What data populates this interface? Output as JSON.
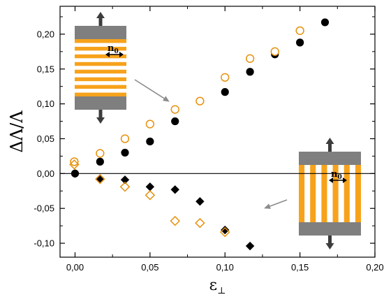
{
  "chart_data": {
    "type": "scatter",
    "title": "",
    "xlabel": "ε",
    "xlabel_subscript": "⊥",
    "ylabel": "ΔΛ/Λ",
    "xlim": [
      -0.01,
      0.2
    ],
    "ylim": [
      -0.12,
      0.24
    ],
    "x_ticks": [
      0.0,
      0.05,
      0.1,
      0.15,
      0.2
    ],
    "x_tick_labels": [
      "0,00",
      "0,05",
      "0,10",
      "0,15",
      "0,20"
    ],
    "y_ticks": [
      -0.1,
      -0.05,
      0.0,
      0.05,
      0.1,
      0.15,
      0.2
    ],
    "y_tick_labels": [
      "-0,10",
      "-0,05",
      "0,00",
      "0,05",
      "0,10",
      "0,15",
      "0,20"
    ],
    "grid": false,
    "zero_line": true,
    "series": [
      {
        "marker": "filled-circle",
        "color": "#000000",
        "points": [
          [
            0.0,
            0.0
          ],
          [
            0.0167,
            0.017
          ],
          [
            0.0333,
            0.03
          ],
          [
            0.05,
            0.046
          ],
          [
            0.0667,
            0.075
          ],
          [
            0.1,
            0.117
          ],
          [
            0.1167,
            0.146
          ],
          [
            0.1333,
            0.171
          ],
          [
            0.15,
            0.188
          ],
          [
            0.1667,
            0.217
          ]
        ]
      },
      {
        "marker": "open-circle",
        "color": "#e8900c",
        "points": [
          [
            -0.0005,
            0.017
          ],
          [
            0.0167,
            0.029
          ],
          [
            0.0333,
            0.05
          ],
          [
            0.05,
            0.071
          ],
          [
            0.0667,
            0.092
          ],
          [
            0.0833,
            0.104
          ],
          [
            0.1,
            0.138
          ],
          [
            0.1167,
            0.165
          ],
          [
            0.1333,
            0.175
          ],
          [
            0.15,
            0.205
          ]
        ]
      },
      {
        "marker": "filled-diamond",
        "color": "#000000",
        "points": [
          [
            0.0,
            0.0
          ],
          [
            0.0167,
            -0.007
          ],
          [
            0.0333,
            -0.009
          ],
          [
            0.05,
            -0.019
          ],
          [
            0.0667,
            -0.023
          ],
          [
            0.0833,
            -0.04
          ],
          [
            0.1,
            -0.081
          ],
          [
            0.1167,
            -0.104
          ]
        ]
      },
      {
        "marker": "open-diamond",
        "color": "#e8900c",
        "points": [
          [
            -0.0005,
            0.013
          ],
          [
            0.0167,
            -0.008
          ],
          [
            0.0333,
            -0.019
          ],
          [
            0.05,
            -0.031
          ],
          [
            0.0667,
            -0.068
          ],
          [
            0.0833,
            -0.071
          ],
          [
            0.1,
            -0.084
          ]
        ]
      }
    ],
    "insets": [
      {
        "stripe_orientation": "horizontal",
        "label": "n",
        "label_subscript": "0",
        "arrow_to": [
          0.063,
          0.103
        ]
      },
      {
        "stripe_orientation": "vertical",
        "label": "n",
        "label_subscript": "0",
        "arrow_to": [
          0.126,
          -0.05
        ]
      }
    ],
    "colors": {
      "stripe": "#f7a21b",
      "plate": "#7f7f7f",
      "grey_arrow": "#8c8c8c"
    }
  }
}
